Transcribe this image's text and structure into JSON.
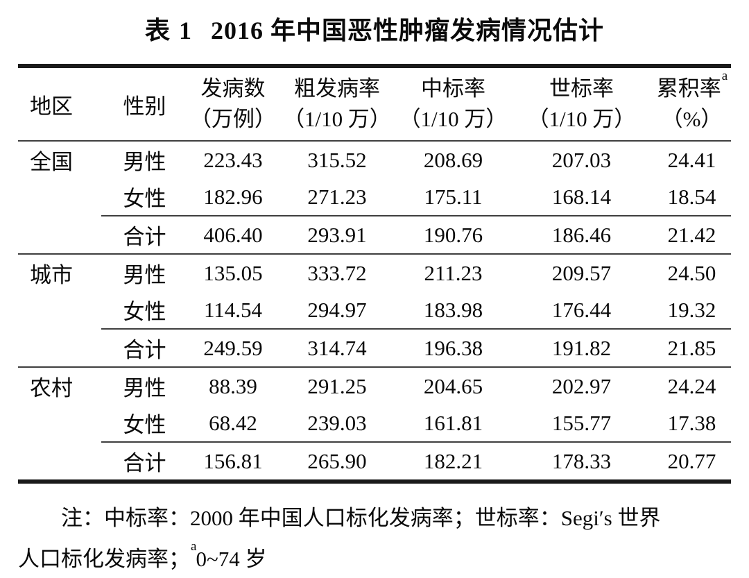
{
  "title": {
    "label": "表 1",
    "text": "2016 年中国恶性肿瘤发病情况估计"
  },
  "table": {
    "headers": {
      "region": "地区",
      "sex": "性别",
      "cols": [
        {
          "name": "发病数",
          "sup": "",
          "unit": "（万例）"
        },
        {
          "name": "粗发病率",
          "sup": "",
          "unit": "（1/10 万）"
        },
        {
          "name": "中标率",
          "sup": "",
          "unit": "（1/10 万）"
        },
        {
          "name": "世标率",
          "sup": "",
          "unit": "（1/10 万）"
        },
        {
          "name": "累积率",
          "sup": "a",
          "unit": "（%）"
        }
      ]
    },
    "sections": [
      {
        "region": "全国",
        "rows": [
          {
            "sex": "男性",
            "values": [
              "223.43",
              "315.52",
              "208.69",
              "207.03",
              "24.41"
            ]
          },
          {
            "sex": "女性",
            "values": [
              "182.96",
              "271.23",
              "175.11",
              "168.14",
              "18.54"
            ]
          },
          {
            "sex": "合计",
            "values": [
              "406.40",
              "293.91",
              "190.76",
              "186.46",
              "21.42"
            ]
          }
        ]
      },
      {
        "region": "城市",
        "rows": [
          {
            "sex": "男性",
            "values": [
              "135.05",
              "333.72",
              "211.23",
              "209.57",
              "24.50"
            ]
          },
          {
            "sex": "女性",
            "values": [
              "114.54",
              "294.97",
              "183.98",
              "176.44",
              "19.32"
            ]
          },
          {
            "sex": "合计",
            "values": [
              "249.59",
              "314.74",
              "196.38",
              "191.82",
              "21.85"
            ]
          }
        ]
      },
      {
        "region": "农村",
        "rows": [
          {
            "sex": "男性",
            "values": [
              "88.39",
              "291.25",
              "204.65",
              "202.97",
              "24.24"
            ]
          },
          {
            "sex": "女性",
            "values": [
              "68.42",
              "239.03",
              "161.81",
              "155.77",
              "17.38"
            ]
          },
          {
            "sex": "合计",
            "values": [
              "156.81",
              "265.90",
              "182.21",
              "178.33",
              "20.77"
            ]
          }
        ]
      }
    ]
  },
  "note": {
    "line1": "注：中标率：2000 年中国人口标化发病率；世标率：Segi′s 世界",
    "line2_prefix": "人口标化发病率；",
    "line2_sup": "a",
    "line2_suffix": "0~74 岁"
  },
  "colors": {
    "background": "#ffffff",
    "text": "#0a0a0a",
    "rule_heavy": "#1a1a1a",
    "rule_light": "#3f3f3f"
  }
}
